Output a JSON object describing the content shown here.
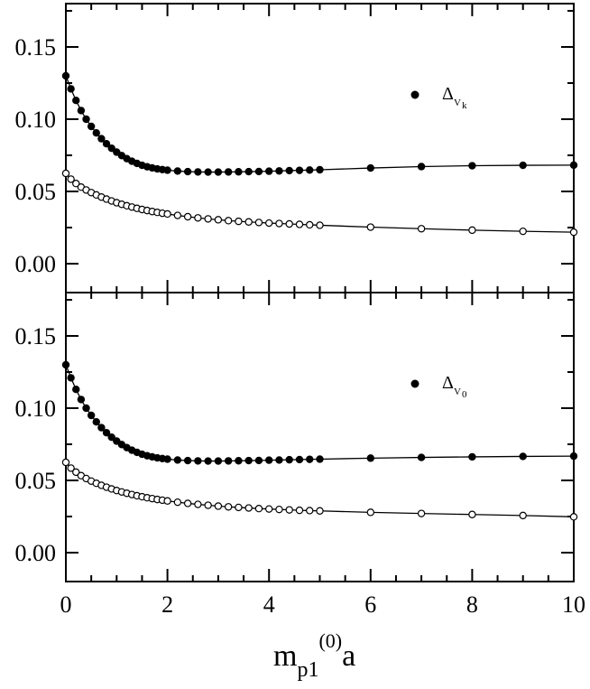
{
  "chart_data": {
    "type": "scatter",
    "xlabel": {
      "main": "m",
      "sub": "p1",
      "sup": "(0)",
      "tail": "a"
    },
    "x_ticks": [
      "0",
      "2",
      "4",
      "6",
      "8",
      "10"
    ],
    "y_ticks": [
      "0.00",
      "0.05",
      "0.10",
      "0.15"
    ],
    "xlim": [
      0,
      10
    ],
    "ylim": [
      -0.02,
      0.18
    ],
    "grid": false,
    "panels": [
      {
        "position": "top",
        "legend": {
          "symbol": "Δ",
          "sub": "V",
          "subsub": "k",
          "placement": "top-right"
        },
        "series": [
          {
            "marker": "filled",
            "x": [
              0,
              0.1,
              0.2,
              0.3,
              0.4,
              0.5,
              0.6,
              0.7,
              0.8,
              0.9,
              1.0,
              1.1,
              1.2,
              1.3,
              1.4,
              1.5,
              1.6,
              1.7,
              1.8,
              1.9,
              2.0,
              2.2,
              2.4,
              2.6,
              2.8,
              3.0,
              3.2,
              3.4,
              3.6,
              3.8,
              4.0,
              4.2,
              4.4,
              4.6,
              4.8,
              5.0,
              6,
              7,
              8,
              9,
              10
            ],
            "y": [
              0.13,
              0.121,
              0.113,
              0.106,
              0.1,
              0.095,
              0.0905,
              0.0865,
              0.083,
              0.0799,
              0.0772,
              0.0748,
              0.0727,
              0.0709,
              0.0694,
              0.0681,
              0.0671,
              0.0663,
              0.0656,
              0.0651,
              0.0647,
              0.0641,
              0.0637,
              0.0635,
              0.0634,
              0.0634,
              0.0635,
              0.0636,
              0.0637,
              0.0638,
              0.064,
              0.0642,
              0.0644,
              0.0646,
              0.0648,
              0.065,
              0.0662,
              0.0672,
              0.0678,
              0.0681,
              0.0682
            ]
          },
          {
            "marker": "open",
            "x": [
              0,
              0.1,
              0.2,
              0.3,
              0.4,
              0.5,
              0.6,
              0.7,
              0.8,
              0.9,
              1.0,
              1.1,
              1.2,
              1.3,
              1.4,
              1.5,
              1.6,
              1.7,
              1.8,
              1.9,
              2.0,
              2.2,
              2.4,
              2.6,
              2.8,
              3.0,
              3.2,
              3.4,
              3.6,
              3.8,
              4.0,
              4.2,
              4.4,
              4.6,
              4.8,
              5.0,
              6,
              7,
              8,
              9,
              10
            ],
            "y": [
              0.0625,
              0.0585,
              0.0555,
              0.053,
              0.051,
              0.0492,
              0.0476,
              0.0461,
              0.0447,
              0.0434,
              0.0422,
              0.0411,
              0.0401,
              0.0392,
              0.0383,
              0.0375,
              0.0368,
              0.0361,
              0.0355,
              0.0349,
              0.0344,
              0.0334,
              0.0325,
              0.0317,
              0.031,
              0.0304,
              0.0298,
              0.0293,
              0.0289,
              0.0285,
              0.0281,
              0.0278,
              0.0275,
              0.0272,
              0.0269,
              0.0266,
              0.0253,
              0.0242,
              0.0232,
              0.0224,
              0.0218
            ]
          }
        ]
      },
      {
        "position": "bottom",
        "legend": {
          "symbol": "Δ",
          "sub": "V",
          "subsub": "0",
          "placement": "top-right"
        },
        "series": [
          {
            "marker": "filled",
            "x": [
              0,
              0.1,
              0.2,
              0.3,
              0.4,
              0.5,
              0.6,
              0.7,
              0.8,
              0.9,
              1.0,
              1.1,
              1.2,
              1.3,
              1.4,
              1.5,
              1.6,
              1.7,
              1.8,
              1.9,
              2.0,
              2.2,
              2.4,
              2.6,
              2.8,
              3.0,
              3.2,
              3.4,
              3.6,
              3.8,
              4.0,
              4.2,
              4.4,
              4.6,
              4.8,
              5.0,
              6,
              7,
              8,
              9,
              10
            ],
            "y": [
              0.13,
              0.121,
              0.113,
              0.106,
              0.1,
              0.095,
              0.0905,
              0.0865,
              0.083,
              0.0799,
              0.0772,
              0.0748,
              0.0727,
              0.0709,
              0.0694,
              0.0681,
              0.0671,
              0.0663,
              0.0656,
              0.0651,
              0.0647,
              0.0641,
              0.0637,
              0.0635,
              0.0634,
              0.0634,
              0.0635,
              0.0636,
              0.0637,
              0.0638,
              0.064,
              0.0641,
              0.0643,
              0.0644,
              0.0646,
              0.0647,
              0.0654,
              0.0659,
              0.0663,
              0.0666,
              0.0668
            ]
          },
          {
            "marker": "open",
            "x": [
              0,
              0.1,
              0.2,
              0.3,
              0.4,
              0.5,
              0.6,
              0.7,
              0.8,
              0.9,
              1.0,
              1.1,
              1.2,
              1.3,
              1.4,
              1.5,
              1.6,
              1.7,
              1.8,
              1.9,
              2.0,
              2.2,
              2.4,
              2.6,
              2.8,
              3.0,
              3.2,
              3.4,
              3.6,
              3.8,
              4.0,
              4.2,
              4.4,
              4.6,
              4.8,
              5.0,
              6,
              7,
              8,
              9,
              10
            ],
            "y": [
              0.0625,
              0.0585,
              0.0557,
              0.0533,
              0.0513,
              0.0495,
              0.048,
              0.0466,
              0.0453,
              0.0441,
              0.043,
              0.042,
              0.0411,
              0.0402,
              0.0394,
              0.0387,
              0.038,
              0.0374,
              0.0368,
              0.0363,
              0.0358,
              0.0349,
              0.0341,
              0.0334,
              0.0328,
              0.0322,
              0.0317,
              0.0313,
              0.0309,
              0.0305,
              0.0302,
              0.0299,
              0.0296,
              0.0293,
              0.0291,
              0.0289,
              0.0279,
              0.0271,
              0.0264,
              0.0257,
              0.0248
            ]
          }
        ]
      }
    ]
  }
}
